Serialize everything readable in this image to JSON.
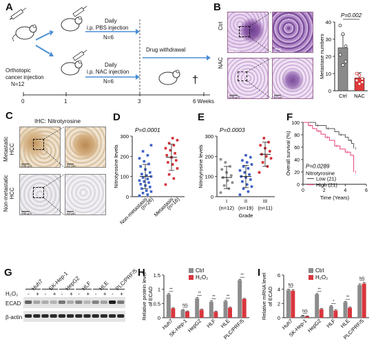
{
  "panels": {
    "A": "A",
    "B": "B",
    "C": "C",
    "D": "D",
    "E": "E",
    "F": "F",
    "G": "G",
    "H": "H",
    "I": "I"
  },
  "panelA": {
    "orthotopic": "Orthotopic",
    "cancer_injection": "cancer injection",
    "n_total": "N=12",
    "daily1": "Daily",
    "pbs": "i.p. PBS injection",
    "n_pbs": "N=6",
    "daily2": "Daily",
    "nac": "i.p. NAC injection",
    "n_nac": "N=6",
    "withdrawal": "Drug withdrawal",
    "dagger": "†",
    "timeline": [
      "0",
      "1",
      "3",
      "6 Weeks"
    ]
  },
  "panelB": {
    "row_ctrl": "Ctrl",
    "row_nac": "NAC",
    "scale_200": "200 μm",
    "scale_50": "50 μm",
    "pvalue": "P=0.002",
    "colors": {
      "ctrl": "#8a8a8a",
      "nac": "#e0393a",
      "he": "#c9a8d6"
    }
  },
  "panelC": {
    "title": "IHC: Nitrotyrosine",
    "row_met": [
      "Metastatic",
      "HCC"
    ],
    "row_nonmet": [
      "Non-metastatic",
      "HCC"
    ],
    "scale_200": "200 μm",
    "scale_50": "50 μm"
  },
  "panelD": {
    "pvalue": "P=0.0001",
    "n_non": "(n=26)",
    "n_met": "(n=16)"
  },
  "panelE": {
    "pvalue": "P=0.0003"
  },
  "panelF": {
    "pvalue": "P=0.0289",
    "legend_title": "Nitrotyrosine"
  },
  "panelG": {
    "lines": [
      "Huh7",
      "SK-Hep-1",
      "HepG2",
      "HLF",
      "HLE",
      "PLC/PRF/5"
    ],
    "h2o2_label": "H₂O₂",
    "signs": [
      "-",
      "+",
      "-",
      "+",
      "-",
      "+",
      "-",
      "+",
      "-",
      "+",
      "-",
      "+"
    ],
    "ecad": "ECAD",
    "actin": "β-actin"
  },
  "chart_data": [
    {
      "id": "B-bar",
      "type": "bar",
      "categories": [
        "Ctrl",
        "NAC"
      ],
      "values": [
        25,
        7.5
      ],
      "errors": [
        7.5,
        3
      ],
      "points": [
        [
          38,
          33,
          26,
          21,
          15,
          17
        ],
        [
          10,
          9,
          7,
          6,
          4,
          5
        ]
      ],
      "ylabel": "Metastase numbers",
      "yticks": [
        0,
        10,
        20,
        30,
        40
      ],
      "ylim": [
        0,
        40
      ],
      "annotation": "P=0.002"
    },
    {
      "id": "D",
      "type": "scatter",
      "categories": [
        "Non-metastasis",
        "Metastasis"
      ],
      "counts": [
        "(n=26)",
        "(n=16)"
      ],
      "ylabel": "Nitrotyrosine levels",
      "yticks": [
        0,
        100,
        200,
        300
      ],
      "ylim": [
        0,
        300
      ],
      "means": [
        100,
        195
      ],
      "sd": [
        60,
        65
      ],
      "points": [
        [
          5,
          10,
          18,
          25,
          30,
          40,
          48,
          55,
          62,
          70,
          75,
          80,
          88,
          95,
          100,
          105,
          112,
          120,
          135,
          150,
          162,
          175,
          190,
          205,
          225,
          255
        ],
        [
          60,
          90,
          110,
          140,
          160,
          170,
          180,
          195,
          205,
          215,
          230,
          240,
          255,
          265,
          280,
          290
        ]
      ],
      "annotation": "P=0.0001"
    },
    {
      "id": "E",
      "type": "scatter",
      "categories": [
        "I",
        "II",
        "III"
      ],
      "counts": [
        "(n=12)",
        "(n=19)",
        "(n=11)"
      ],
      "xlabel": "Grade",
      "ylabel": "Nitrotyrosine levels",
      "yticks": [
        0,
        100,
        200,
        300
      ],
      "ylim": [
        0,
        300
      ],
      "means": [
        95,
        100,
        210
      ],
      "sd": [
        55,
        55,
        60
      ],
      "points": [
        [
          20,
          40,
          55,
          70,
          80,
          95,
          105,
          120,
          135,
          150,
          170,
          185
        ],
        [
          10,
          25,
          40,
          50,
          60,
          75,
          85,
          95,
          100,
          110,
          120,
          130,
          140,
          150,
          160,
          170,
          180,
          195,
          205
        ],
        [
          120,
          150,
          170,
          190,
          200,
          210,
          225,
          240,
          255,
          270,
          290
        ]
      ],
      "annotation": "P=0.0003"
    },
    {
      "id": "F",
      "type": "line",
      "ylabel": "Overall survival (%)",
      "xlabel": "Time (Years)",
      "xticks": [
        0,
        2,
        4,
        6
      ],
      "yticks": [
        0,
        20,
        40,
        60,
        80,
        100
      ],
      "xlim": [
        0,
        6
      ],
      "ylim": [
        0,
        100
      ],
      "series": [
        {
          "name": "Low (21)",
          "color": "#555555",
          "x": [
            0,
            1.2,
            1.6,
            2.2,
            3.0,
            3.4,
            4.0,
            4.3,
            4.6,
            4.8
          ],
          "y": [
            100,
            95,
            95,
            90,
            85,
            80,
            76,
            71,
            66,
            58
          ]
        },
        {
          "name": "High (21)",
          "color": "#e8417a",
          "x": [
            0,
            0.5,
            0.9,
            1.3,
            1.7,
            2.1,
            2.5,
            3.0,
            3.5,
            4.0,
            4.5,
            4.8
          ],
          "y": [
            100,
            95,
            90,
            86,
            81,
            76,
            71,
            62,
            57,
            52,
            47,
            20
          ]
        }
      ],
      "annotation": "P=0.0289"
    },
    {
      "id": "H",
      "type": "bar",
      "categories": [
        "Huh7",
        "SK-Hep-1",
        "HepG2",
        "HLF",
        "HLE",
        "PLC/PRF/5"
      ],
      "ylabel": "Relative protein level of ECAD",
      "yticks": [
        0,
        0.5,
        1.0,
        1.5
      ],
      "ylim": [
        0,
        1.5
      ],
      "significance": [
        "**",
        "NS",
        "**",
        "**",
        "**",
        "**"
      ],
      "series": [
        {
          "name": "Ctrl",
          "color": "#8c8c8c",
          "values": [
            0.82,
            0.27,
            0.68,
            0.56,
            0.58,
            1.32
          ],
          "errors": [
            0.03,
            0.02,
            0.03,
            0.03,
            0.03,
            0.03
          ]
        },
        {
          "name": "H₂O₂",
          "color": "#d9363e",
          "values": [
            0.33,
            0.22,
            0.28,
            0.21,
            0.35,
            0.66
          ],
          "errors": [
            0.02,
            0.02,
            0.02,
            0.02,
            0.02,
            0.02
          ]
        }
      ]
    },
    {
      "id": "I",
      "type": "bar",
      "categories": [
        "Huh7",
        "SK-Hep-1",
        "HepG2",
        "HLF",
        "HLE",
        "PLC/PRF/5"
      ],
      "ylabel": "Relative mRNA level of ECAD",
      "yticks": [
        0,
        2,
        4,
        6
      ],
      "ylim": [
        0,
        6
      ],
      "significance": [
        "NS",
        "NS",
        "**",
        "*",
        "**",
        "NS"
      ],
      "series": [
        {
          "name": "Ctrl",
          "color": "#8c8c8c",
          "values": [
            3.9,
            0.3,
            3.3,
            1.6,
            2.2,
            4.6
          ],
          "errors": [
            0.1,
            0.05,
            0.1,
            0.1,
            0.1,
            0.15
          ]
        },
        {
          "name": "H₂O₂",
          "color": "#d9363e",
          "values": [
            3.8,
            0.2,
            1.2,
            1.0,
            1.4,
            4.8
          ],
          "errors": [
            0.15,
            0.05,
            0.1,
            0.1,
            0.1,
            0.15
          ]
        }
      ]
    }
  ]
}
